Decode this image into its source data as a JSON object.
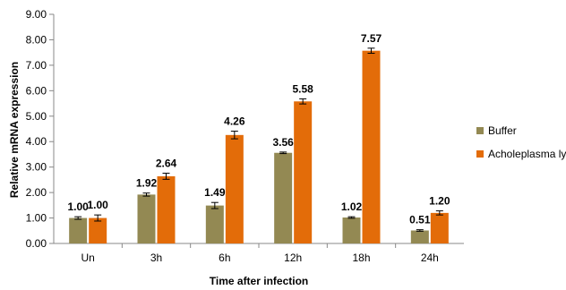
{
  "chart_data": {
    "type": "bar",
    "title": "",
    "xlabel": "Time after infection",
    "ylabel": "Relative mRNA expression",
    "categories": [
      "Un",
      "3h",
      "6h",
      "12h",
      "18h",
      "24h"
    ],
    "ylim": [
      0,
      9
    ],
    "ytick_step": 1,
    "ytick_labels": [
      "0.00",
      "1.00",
      "2.00",
      "3.00",
      "4.00",
      "5.00",
      "6.00",
      "7.00",
      "8.00",
      "9.00"
    ],
    "grid": false,
    "legend_position": "right",
    "series": [
      {
        "name": "Buffer",
        "color": "#938953",
        "values": [
          1.0,
          1.92,
          1.49,
          3.56,
          1.02,
          0.51
        ],
        "labels": [
          "1.00",
          "1.92",
          "1.49",
          "3.56",
          "1.02",
          "0.51"
        ],
        "errors": [
          0.05,
          0.06,
          0.12,
          0.03,
          0.03,
          0.03
        ]
      },
      {
        "name": "Acholeplasma lysate",
        "color": "#E36C09",
        "values": [
          1.0,
          2.64,
          4.26,
          5.58,
          7.57,
          1.2
        ],
        "labels": [
          "1.00",
          "2.64",
          "4.26",
          "5.58",
          "7.57",
          "1.20"
        ],
        "errors": [
          0.12,
          0.12,
          0.15,
          0.1,
          0.1,
          0.08
        ]
      }
    ]
  }
}
